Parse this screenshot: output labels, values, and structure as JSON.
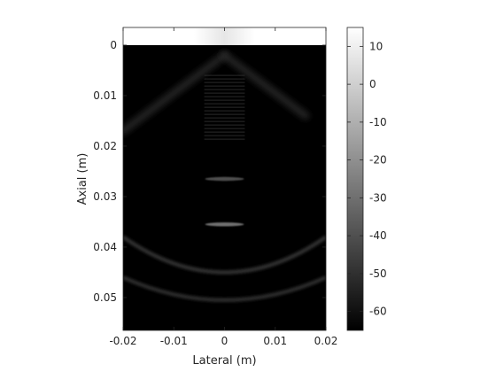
{
  "chart_data": {
    "type": "heatmap",
    "title": "",
    "xlabel": "Lateral (m)",
    "ylabel": "Axial (m)",
    "xlim": [
      -0.02,
      0.02
    ],
    "ylim": [
      -0.0035,
      0.0565
    ],
    "y_reversed": true,
    "x_ticks": [
      -0.02,
      -0.01,
      0,
      0.01,
      0.02
    ],
    "x_tick_labels": [
      "-0.02",
      "-0.01",
      "0",
      "0.01",
      "0.02"
    ],
    "y_ticks": [
      0,
      0.01,
      0.02,
      0.03,
      0.04,
      0.05
    ],
    "y_tick_labels": [
      "0",
      "0.01",
      "0.02",
      "0.03",
      "0.04",
      "0.05"
    ],
    "colorbar": {
      "colormap": "gray",
      "range": [
        -65,
        15
      ],
      "ticks": [
        10,
        0,
        -10,
        -20,
        -30,
        -40,
        -50,
        -60
      ],
      "tick_labels": [
        "10",
        "0",
        "-10",
        "-20",
        "-30",
        "-40",
        "-50",
        "-60"
      ]
    },
    "features": [
      {
        "kind": "near-field saturation",
        "x_center": 0,
        "x_span": [
          -0.02,
          0.02
        ],
        "y_span": [
          -0.0035,
          0
        ],
        "level_db": 15
      },
      {
        "kind": "point target",
        "x": 0,
        "y": 0.0265,
        "level_db": -40
      },
      {
        "kind": "point target",
        "x": 0,
        "y": 0.0355,
        "level_db": -30
      },
      {
        "kind": "vertical artifact",
        "x_span": [
          -0.004,
          0.004
        ],
        "y_span": [
          0.006,
          0.019
        ],
        "level_db": -50
      },
      {
        "kind": "arc",
        "y_at_center": 0.045,
        "y_at_edges": 0.038,
        "level_db": -48
      },
      {
        "kind": "arc",
        "y_at_center": 0.0505,
        "y_at_edges": 0.046,
        "level_db": -50
      },
      {
        "kind": "diagonal wave",
        "from": [
          0,
          0.002
        ],
        "to": [
          -0.02,
          0.017
        ],
        "level_db": -52
      },
      {
        "kind": "diagonal wave",
        "from": [
          0,
          0.002
        ],
        "to": [
          0.016,
          0.014
        ],
        "level_db": -52
      }
    ]
  }
}
